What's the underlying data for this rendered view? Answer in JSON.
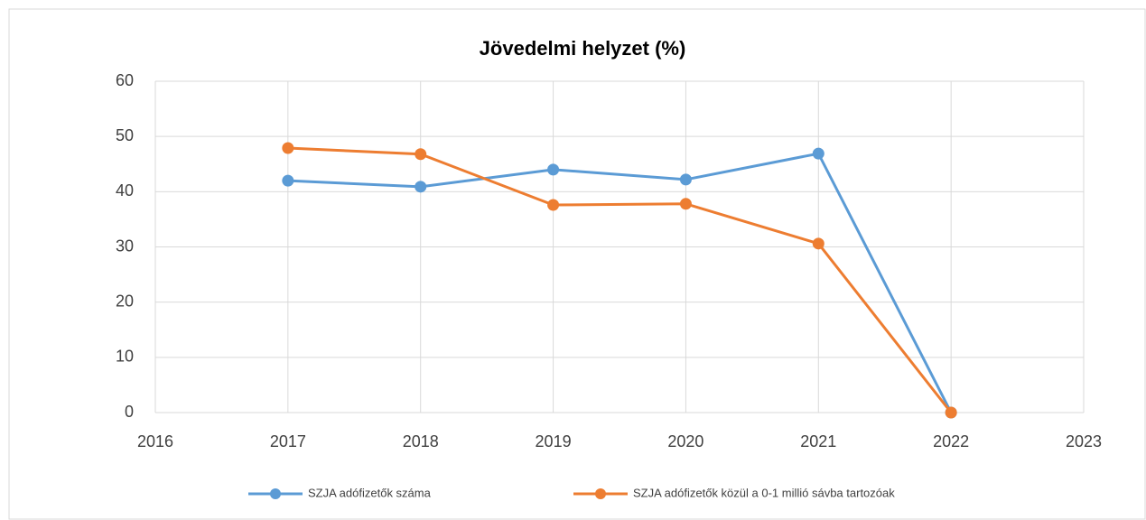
{
  "chart_data": {
    "type": "line",
    "title": "Jövedelmi helyzet (%)",
    "x": [
      2017,
      2018,
      2019,
      2020,
      2021,
      2022
    ],
    "series": [
      {
        "name": "SZJA adófizetők száma",
        "color": "#5b9bd5",
        "values": [
          42.0,
          40.9,
          44.0,
          42.2,
          46.9,
          0
        ]
      },
      {
        "name": "SZJA adófizetők közül a 0-1 millió sávba tartozóak",
        "color": "#ed7d31",
        "values": [
          47.9,
          46.8,
          37.6,
          37.8,
          30.6,
          0
        ]
      }
    ],
    "xlim": [
      2016,
      2023
    ],
    "xticks": [
      2016,
      2017,
      2018,
      2019,
      2020,
      2021,
      2022,
      2023
    ],
    "ylim": [
      0,
      60
    ],
    "yticks": [
      0,
      10,
      20,
      30,
      40,
      50,
      60
    ],
    "grid": true,
    "legend": "bottom"
  }
}
